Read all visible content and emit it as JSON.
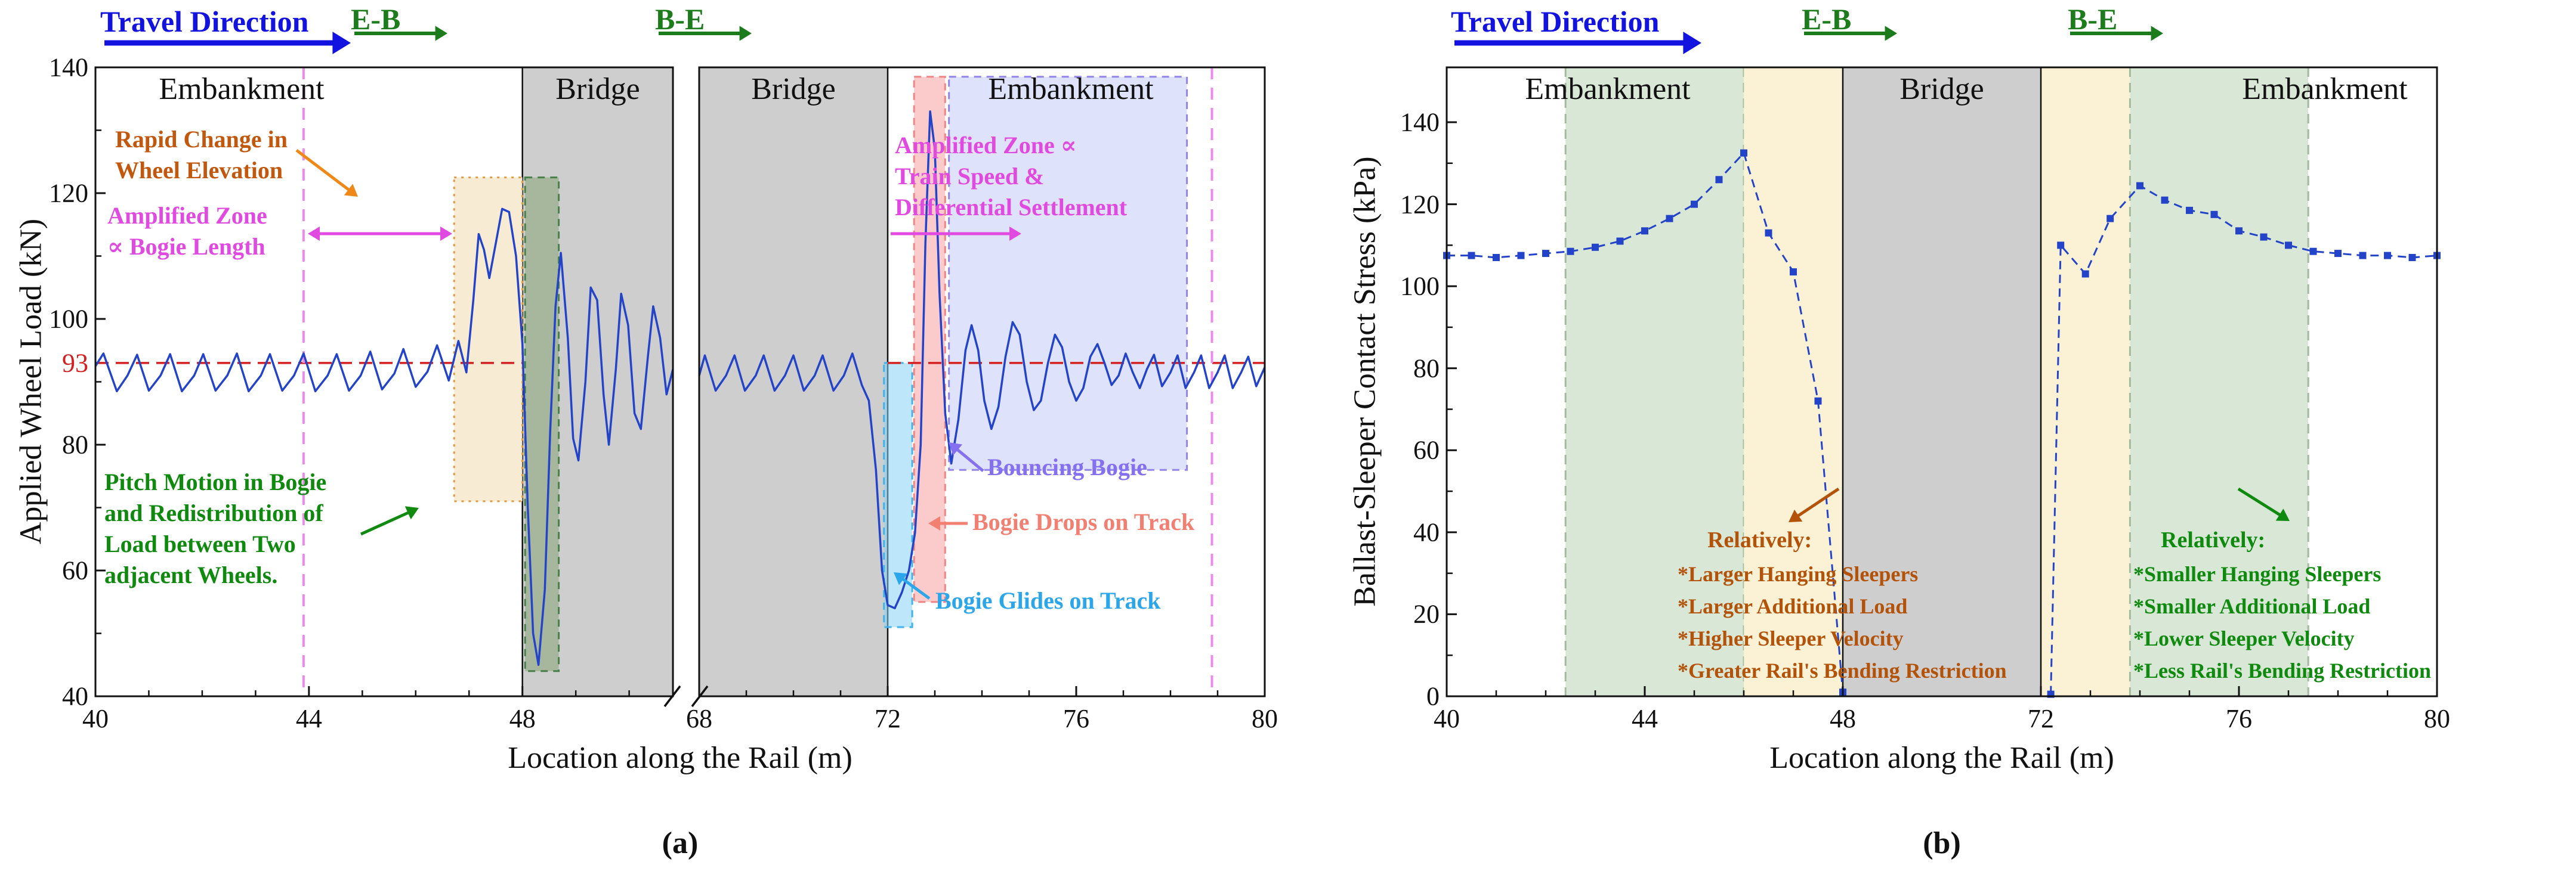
{
  "colors": {
    "line_blue": "#2343c8",
    "travel_blue": "#1313e0",
    "green_label": "#1c7c1c",
    "magenta": "#e04ae0",
    "violet_dash": "#ee8aee",
    "red_ref": "#d42020",
    "orange_arrow": "#f08818",
    "rapid_text": "#c2570e",
    "pitch_green": "#0f8a0f",
    "bouncing_purple": "#8470f0",
    "drops_salmon": "#f28072",
    "glides_blue": "#2ba6ea",
    "brown_text": "#b35209",
    "bridge_gray": "#cecece",
    "zone_green_b": "#b9d4b4",
    "zone_tan": "#faf0cf",
    "frame": "#111111"
  },
  "panel_a": {
    "travel_direction": "Travel Direction",
    "eb": "E-B",
    "be": "B-E",
    "embankment_left": "Embankment",
    "bridge_left": "Bridge",
    "bridge_right": "Bridge",
    "embankment_right": "Embankment",
    "ann_rapid": "Rapid Change in\nWheel Elevation",
    "ann_amp_bogie": "Amplified Zone\n∝ Bogie Length",
    "ann_pitch": "Pitch Motion in Bogie\nand Redistribution of\nLoad between Two\nadjacent Wheels.",
    "ann_amp_speed": "Amplified Zone ∝\nTrain Speed &\nDifferential Settlement",
    "ann_bouncing": "Bouncing Bogie",
    "ann_drops": "Bogie Drops on Track",
    "ann_glides": "Bogie Glides on Track",
    "ref_label": "93",
    "xlabel": "Location along the Rail (m)",
    "ylabel": "Applied Wheel Load (kN)",
    "panel_letter": "(a)"
  },
  "panel_b": {
    "travel_direction": "Travel Direction",
    "eb": "E-B",
    "be": "B-E",
    "embankment_left": "Embankment",
    "bridge": "Bridge",
    "embankment_right": "Embankment",
    "ann_left_header": "Relatively:",
    "ann_left_items": "*Larger Hanging Sleepers\n*Larger Additional Load\n*Higher Sleeper Velocity\n*Greater Rail's Bending Restriction",
    "ann_right_header": "Relatively:",
    "ann_right_items": "*Smaller Hanging Sleepers\n*Smaller Additional Load\n*Lower Sleeper Velocity\n*Less Rail's Bending Restriction",
    "xlabel": "Location along the Rail (m)",
    "ylabel": "Ballast-Sleeper Contact Stress (kPa)",
    "panel_letter": "(b)"
  },
  "chart_data": [
    {
      "type": "line",
      "title": "Applied wheel load along the rail across embankment-bridge transitions (x-axis broken; 50.8-68 m of bridge omitted)",
      "xlabel": "Location along the Rail (m)",
      "ylabel": "Applied Wheel Load (kN)",
      "ylim": [
        40,
        140
      ],
      "yticks": [
        40,
        60,
        80,
        100,
        120,
        140
      ],
      "x_axis_break": [
        50.82,
        68
      ],
      "ref_line": {
        "y": 93,
        "label": "93",
        "spans": [
          [
            "left",
            40,
            48
          ],
          [
            "right",
            72,
            80
          ]
        ]
      },
      "vlines": [
        {
          "segment": "left",
          "x": 43.9
        },
        {
          "segment": "right",
          "x": 78.88
        }
      ],
      "regions": [
        {
          "label": "Embankment",
          "segment": "left",
          "x0": 40,
          "x1": 48
        },
        {
          "label": "Bridge",
          "segment": "left",
          "x0": 48,
          "x1": 50.82
        },
        {
          "label": "Bridge",
          "segment": "right",
          "x0": 68,
          "x1": 72
        },
        {
          "label": "Embankment",
          "segment": "right",
          "x0": 72,
          "x1": 80
        }
      ],
      "zones": [
        {
          "segment": "left",
          "x0": 46.72,
          "x1": 48.0,
          "y0": 71,
          "y1": 122.5,
          "fill": "#f6e9cf",
          "fill_opacity": 0.9,
          "stroke": "#e09a40",
          "dash": "4 8",
          "label": "rapid wheel-elevation-change zone"
        },
        {
          "segment": "left",
          "x0": 48.05,
          "x1": 48.68,
          "y0": 44,
          "y1": 122.5,
          "fill": "#7fa06e",
          "fill_opacity": 0.5,
          "stroke": "#47804a",
          "dash": "12 9",
          "label": "pitch motion zone"
        },
        {
          "segment": "right",
          "x0": 71.92,
          "x1": 72.52,
          "y0": 51,
          "y1": 93,
          "fill": "#86d2f5",
          "fill_opacity": 0.55,
          "stroke": "#3fb3ea",
          "dash": "12 9",
          "label": "bogie glides on track zone"
        },
        {
          "segment": "right",
          "x0": 72.56,
          "x1": 73.22,
          "y0": 55,
          "y1": 138.5,
          "fill": "#f9a9a9",
          "fill_opacity": 0.6,
          "stroke": "#ef8585",
          "dash": "12 9",
          "label": "bogie drops on track zone"
        },
        {
          "segment": "right",
          "x0": 73.3,
          "x1": 78.35,
          "y0": 76,
          "y1": 138.5,
          "fill": "#b0bbf4",
          "fill_opacity": 0.42,
          "stroke": "#9184ea",
          "dash": "12 9",
          "label": "bouncing bogie amplified zone"
        }
      ],
      "segments": [
        {
          "name": "left",
          "xlim": [
            40,
            50.82
          ],
          "xticks": [
            40,
            44,
            48
          ],
          "points": [
            [
              40,
              92.5
            ],
            [
              40.15,
              94.5
            ],
            [
              40.4,
              88.5
            ],
            [
              40.6,
              91
            ],
            [
              40.78,
              94.3
            ],
            [
              41,
              88.6
            ],
            [
              41.22,
              91
            ],
            [
              41.4,
              94.4
            ],
            [
              41.62,
              88.5
            ],
            [
              41.85,
              91
            ],
            [
              42.02,
              94.4
            ],
            [
              42.25,
              88.6
            ],
            [
              42.47,
              91
            ],
            [
              42.65,
              94.5
            ],
            [
              42.87,
              88.5
            ],
            [
              43.1,
              91
            ],
            [
              43.27,
              94.4
            ],
            [
              43.5,
              88.6
            ],
            [
              43.72,
              91
            ],
            [
              43.9,
              94.5
            ],
            [
              44.12,
              88.5
            ],
            [
              44.35,
              91
            ],
            [
              44.52,
              94.4
            ],
            [
              44.75,
              88.6
            ],
            [
              44.97,
              91
            ],
            [
              45.15,
              94.8
            ],
            [
              45.37,
              88.8
            ],
            [
              45.6,
              91.3
            ],
            [
              45.77,
              95.2
            ],
            [
              46,
              89.2
            ],
            [
              46.22,
              91.6
            ],
            [
              46.4,
              95.8
            ],
            [
              46.62,
              90.2
            ],
            [
              46.8,
              96.5
            ],
            [
              46.95,
              91.5
            ],
            [
              47.08,
              103
            ],
            [
              47.18,
              113.5
            ],
            [
              47.28,
              111
            ],
            [
              47.38,
              106.5
            ],
            [
              47.5,
              112
            ],
            [
              47.62,
              117.5
            ],
            [
              47.75,
              117
            ],
            [
              47.88,
              110
            ],
            [
              48,
              96
            ],
            [
              48.1,
              70
            ],
            [
              48.2,
              50
            ],
            [
              48.3,
              45
            ],
            [
              48.42,
              57
            ],
            [
              48.52,
              82
            ],
            [
              48.62,
              102
            ],
            [
              48.72,
              110.5
            ],
            [
              48.85,
              97
            ],
            [
              48.95,
              81
            ],
            [
              49.05,
              77.5
            ],
            [
              49.18,
              90
            ],
            [
              49.28,
              105
            ],
            [
              49.4,
              103
            ],
            [
              49.52,
              88
            ],
            [
              49.62,
              80
            ],
            [
              49.75,
              92
            ],
            [
              49.85,
              104
            ],
            [
              49.98,
              99
            ],
            [
              50.1,
              85
            ],
            [
              50.22,
              82.5
            ],
            [
              50.35,
              94
            ],
            [
              50.45,
              102
            ],
            [
              50.58,
              97
            ],
            [
              50.7,
              88
            ],
            [
              50.82,
              92
            ]
          ]
        },
        {
          "name": "right",
          "xlim": [
            68,
            80
          ],
          "xticks": [
            68,
            72,
            76,
            80
          ],
          "points": [
            [
              68,
              91
            ],
            [
              68.12,
              94.2
            ],
            [
              68.35,
              88.6
            ],
            [
              68.57,
              91
            ],
            [
              68.75,
              94.2
            ],
            [
              68.97,
              88.6
            ],
            [
              69.2,
              91
            ],
            [
              69.37,
              94.2
            ],
            [
              69.6,
              88.6
            ],
            [
              69.82,
              91
            ],
            [
              70,
              94.2
            ],
            [
              70.22,
              88.6
            ],
            [
              70.45,
              91
            ],
            [
              70.62,
              94.2
            ],
            [
              70.85,
              88.6
            ],
            [
              71.07,
              91
            ],
            [
              71.25,
              94.5
            ],
            [
              71.45,
              89.5
            ],
            [
              71.6,
              87
            ],
            [
              71.75,
              76
            ],
            [
              71.88,
              60
            ],
            [
              72,
              54.5
            ],
            [
              72.15,
              54
            ],
            [
              72.3,
              56.5
            ],
            [
              72.45,
              60
            ],
            [
              72.58,
              66
            ],
            [
              72.7,
              80
            ],
            [
              72.8,
              112
            ],
            [
              72.9,
              133
            ],
            [
              73,
              127
            ],
            [
              73.1,
              104
            ],
            [
              73.22,
              85
            ],
            [
              73.35,
              77
            ],
            [
              73.5,
              84
            ],
            [
              73.65,
              95
            ],
            [
              73.78,
              99
            ],
            [
              73.92,
              95
            ],
            [
              74.05,
              87
            ],
            [
              74.2,
              82.5
            ],
            [
              74.35,
              86
            ],
            [
              74.5,
              94
            ],
            [
              74.65,
              99.5
            ],
            [
              74.8,
              97.5
            ],
            [
              74.95,
              90
            ],
            [
              75.1,
              85.5
            ],
            [
              75.25,
              87
            ],
            [
              75.4,
              93
            ],
            [
              75.55,
              97.5
            ],
            [
              75.7,
              95.5
            ],
            [
              75.85,
              90
            ],
            [
              76,
              87
            ],
            [
              76.15,
              89
            ],
            [
              76.3,
              94
            ],
            [
              76.45,
              96
            ],
            [
              76.6,
              93
            ],
            [
              76.75,
              89.5
            ],
            [
              76.9,
              91
            ],
            [
              77.05,
              94.5
            ],
            [
              77.2,
              91.5
            ],
            [
              77.35,
              89
            ],
            [
              77.5,
              92
            ],
            [
              77.65,
              94.3
            ],
            [
              77.82,
              89.3
            ],
            [
              78,
              91.5
            ],
            [
              78.15,
              94.2
            ],
            [
              78.32,
              89
            ],
            [
              78.5,
              91.5
            ],
            [
              78.65,
              94.2
            ],
            [
              78.82,
              89
            ],
            [
              79,
              91.5
            ],
            [
              79.15,
              94.2
            ],
            [
              79.32,
              89
            ],
            [
              79.5,
              91.5
            ],
            [
              79.65,
              94
            ],
            [
              79.82,
              89.3
            ],
            [
              80,
              92.3
            ]
          ]
        }
      ]
    },
    {
      "type": "line",
      "marker": "square",
      "title": "Ballast-sleeper contact stress along the rail (bridge span 48-72 m compressed on x-axis)",
      "xlabel": "Location along the Rail (m)",
      "ylabel": "Ballast-Sleeper Contact Stress (kPa)",
      "ylim": [
        0,
        153
      ],
      "yticks": [
        0,
        20,
        40,
        60,
        80,
        100,
        120,
        140
      ],
      "xticks": [
        40,
        44,
        48,
        72,
        76,
        80
      ],
      "bridge_span": [
        48,
        72
      ],
      "regions": [
        {
          "label": "Embankment",
          "x0": 40,
          "x1": 48
        },
        {
          "label": "Bridge",
          "x0": 48,
          "x1": 72
        },
        {
          "label": "Embankment",
          "x0": 72,
          "x1": 80
        }
      ],
      "zones": [
        {
          "x0": 42.4,
          "x1": 46.0,
          "fill": "#b9d4b4",
          "fill_opacity": 0.55,
          "edges": true,
          "label": "E-B embankment influence zone"
        },
        {
          "x0": 46.0,
          "x1": 48.0,
          "fill": "#faf0cf",
          "fill_opacity": 0.85,
          "edges": false,
          "label": "transition zone before bridge"
        },
        {
          "x0": 72.0,
          "x1": 73.8,
          "fill": "#faf0cf",
          "fill_opacity": 0.85,
          "edges": false,
          "label": "transition zone after bridge"
        },
        {
          "x0": 73.8,
          "x1": 77.4,
          "fill": "#b9d4b4",
          "fill_opacity": 0.55,
          "edges": true,
          "label": "B-E embankment influence zone"
        }
      ],
      "series": [
        {
          "name": "before bridge (E-B)",
          "points": [
            [
              40,
              107.5
            ],
            [
              40.5,
              107.5
            ],
            [
              41,
              107
            ],
            [
              41.5,
              107.5
            ],
            [
              42,
              108
            ],
            [
              42.5,
              108.5
            ],
            [
              43,
              109.5
            ],
            [
              43.5,
              111
            ],
            [
              44,
              113.5
            ],
            [
              44.5,
              116.5
            ],
            [
              45,
              120
            ],
            [
              45.5,
              126
            ],
            [
              46,
              132.5
            ],
            [
              46.5,
              113
            ],
            [
              47,
              103.5
            ],
            [
              47.5,
              72
            ],
            [
              48,
              1
            ]
          ]
        },
        {
          "name": "after bridge (B-E)",
          "points": [
            [
              72.2,
              0.5
            ],
            [
              72.4,
              110
            ],
            [
              72.9,
              103
            ],
            [
              73.4,
              116.5
            ],
            [
              74,
              124.5
            ],
            [
              74.5,
              121
            ],
            [
              75,
              118.5
            ],
            [
              75.5,
              117.5
            ],
            [
              76,
              113.5
            ],
            [
              76.5,
              112
            ],
            [
              77,
              110
            ],
            [
              77.5,
              108.5
            ],
            [
              78,
              108
            ],
            [
              78.5,
              107.5
            ],
            [
              79,
              107.5
            ],
            [
              79.5,
              107
            ],
            [
              80,
              107.5
            ]
          ]
        }
      ]
    }
  ]
}
